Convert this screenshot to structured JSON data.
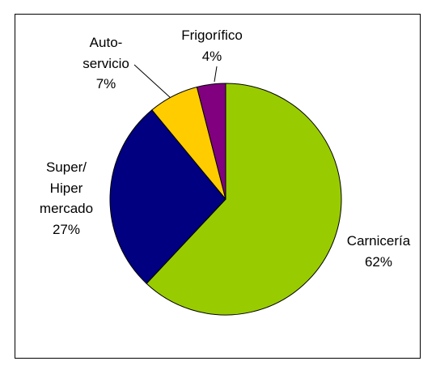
{
  "chart_data": {
    "type": "pie",
    "categories": [
      "Carnicería",
      "Super/\nHiper\nmercado",
      "Auto-\nservicio",
      "Frigorífico"
    ],
    "values": [
      62,
      27,
      7,
      4
    ],
    "value_labels": [
      "62%",
      "27%",
      "7%",
      "4%"
    ],
    "colors": [
      "#99cc00",
      "#000080",
      "#ffcc00",
      "#800080"
    ]
  }
}
